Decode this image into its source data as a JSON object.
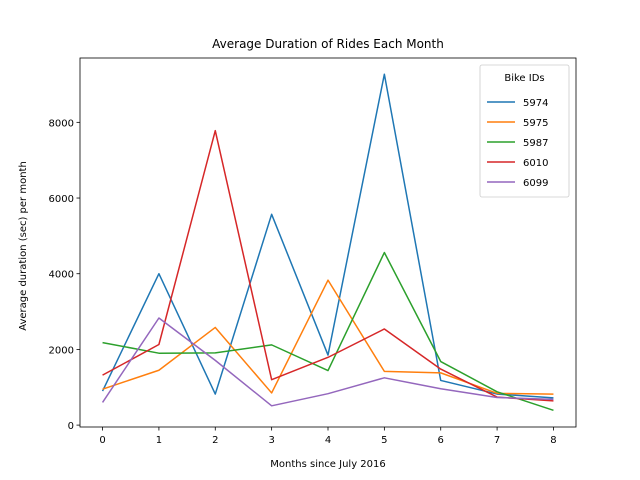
{
  "chart_data": {
    "type": "line",
    "title": "Average Duration of Rides Each Month",
    "xlabel": "Months since July 2016",
    "ylabel": "Average duration (sec) per month",
    "x": [
      0,
      1,
      2,
      3,
      4,
      5,
      6,
      7,
      8
    ],
    "xlim": [
      -0.4,
      8.4
    ],
    "ylim": [
      -50,
      9700
    ],
    "xticks": [
      "0",
      "1",
      "2",
      "3",
      "4",
      "5",
      "6",
      "7",
      "8"
    ],
    "yticks": [
      0,
      2000,
      4000,
      6000,
      8000
    ],
    "ytick_labels": [
      "0",
      "2000",
      "4000",
      "6000",
      "8000"
    ],
    "grid": false,
    "legend": {
      "title": "Bike IDs",
      "position": "top-right"
    },
    "series": [
      {
        "name": "5974",
        "color": "#1f77b4",
        "values": [
          900,
          4000,
          820,
          5570,
          1850,
          9270,
          1180,
          820,
          720
        ]
      },
      {
        "name": "5975",
        "color": "#ff7f0e",
        "values": [
          950,
          1450,
          2580,
          850,
          3830,
          1420,
          1380,
          840,
          820
        ]
      },
      {
        "name": "5987",
        "color": "#2ca02c",
        "values": [
          2180,
          1900,
          1910,
          2120,
          1440,
          4560,
          1680,
          880,
          390
        ]
      },
      {
        "name": "6010",
        "color": "#d62728",
        "values": [
          1320,
          2130,
          7780,
          1200,
          1790,
          2540,
          1480,
          740,
          640
        ]
      },
      {
        "name": "6099",
        "color": "#9467bd",
        "values": [
          600,
          2830,
          1710,
          510,
          830,
          1250,
          960,
          730,
          680
        ]
      }
    ]
  }
}
